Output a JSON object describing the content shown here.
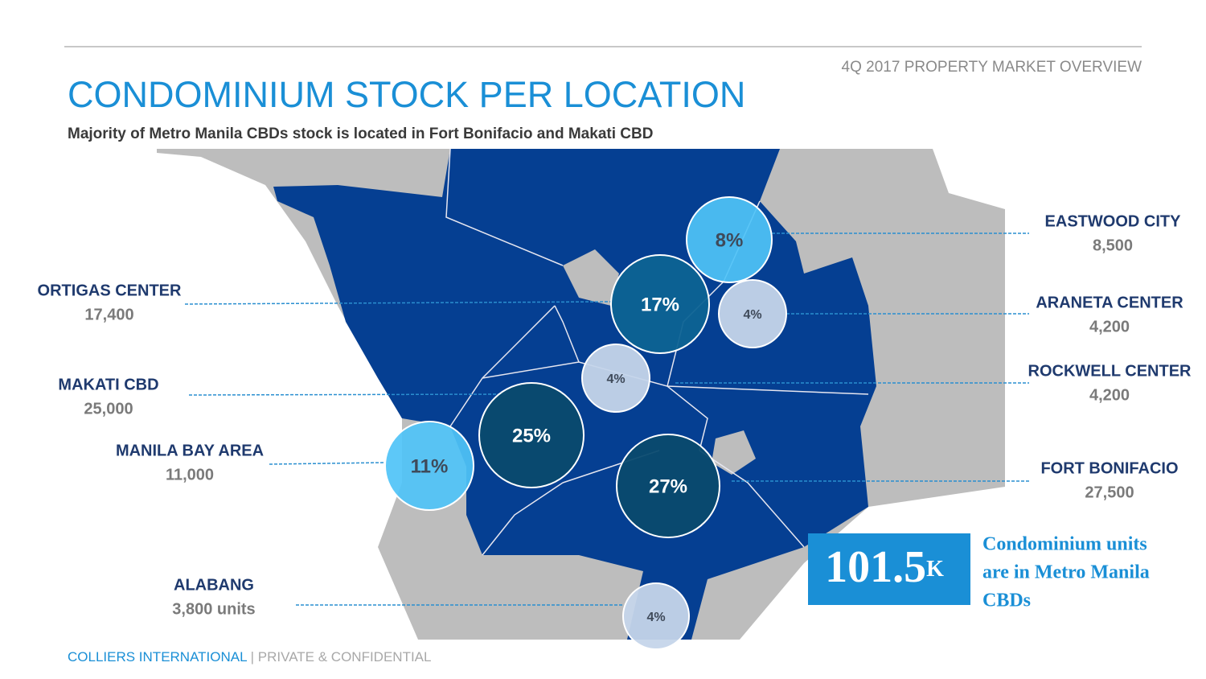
{
  "header": {
    "report": "4Q 2017 PROPERTY MARKET OVERVIEW",
    "title": "CONDOMINIUM STOCK PER LOCATION",
    "subtitle": "Majority of Metro Manila CBDs stock is located in Fort Bonifacio and Makati CBD"
  },
  "locations": [
    {
      "name": "EASTWOOD CITY",
      "units": "8,500",
      "share": "8%"
    },
    {
      "name": "ORTIGAS CENTER",
      "units": "17,400",
      "share": "17%"
    },
    {
      "name": "ARANETA CENTER",
      "units": "4,200",
      "share": "4%"
    },
    {
      "name": "ROCKWELL CENTER",
      "units": "4,200",
      "share": "4%"
    },
    {
      "name": "MAKATI CBD",
      "units": "25,000",
      "share": "25%"
    },
    {
      "name": "MANILA BAY AREA",
      "units": "11,000",
      "share": "11%"
    },
    {
      "name": "FORT BONIFACIO",
      "units": "27,500",
      "share": "27%"
    },
    {
      "name": "ALABANG",
      "units": "3,800 units",
      "share": "4%"
    }
  ],
  "total": {
    "value": "101.5",
    "suffix": "K",
    "caption": [
      "Condominium units",
      "are in Metro Manila",
      "CBDs"
    ]
  },
  "footer": {
    "company": "COLLIERS INTERNATIONAL",
    "note": " | PRIVATE & CONFIDENTIAL"
  }
}
